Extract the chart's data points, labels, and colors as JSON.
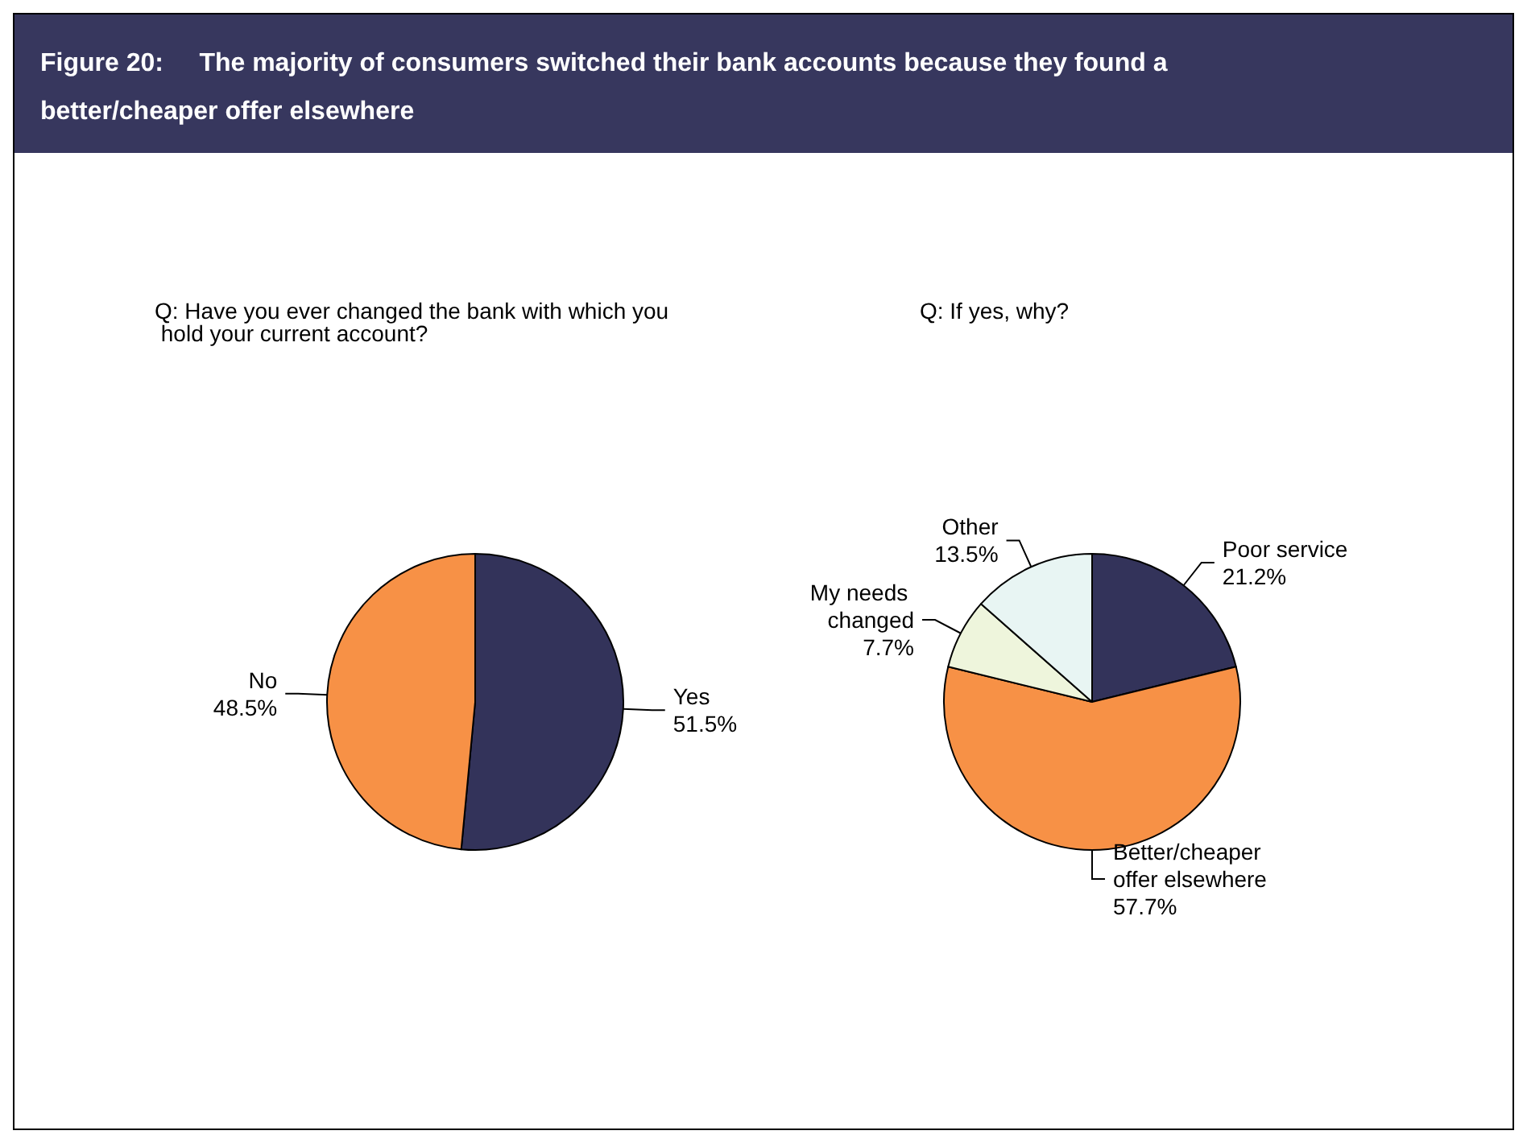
{
  "chart_data": [
    {
      "type": "pie",
      "title": "Figure 20:     The majority of consumers switched their bank accounts because they found a better/cheaper offer elsewhere",
      "subtitle": "Q: Have you ever changed the bank with which you hold your current account?",
      "categories": [
        "Yes",
        "No"
      ],
      "values": [
        51.5,
        48.5
      ],
      "value_labels": [
        "51.5%",
        "48.5%"
      ],
      "colors": [
        "#33335a",
        "#f79146"
      ],
      "data_labels": true,
      "legend": false
    },
    {
      "type": "pie",
      "subtitle": "Q: If yes, why?",
      "categories": [
        "Poor service",
        "Better/cheaper offer elsewhere",
        "My needs changed",
        "Other"
      ],
      "values": [
        21.2,
        57.7,
        7.7,
        13.5
      ],
      "value_labels": [
        "21.2%",
        "57.7%",
        "7.7%",
        "13.5%"
      ],
      "colors": [
        "#33335a",
        "#f79146",
        "#eef5dc",
        "#e8f5f3"
      ],
      "data_labels": true,
      "legend": false
    }
  ]
}
